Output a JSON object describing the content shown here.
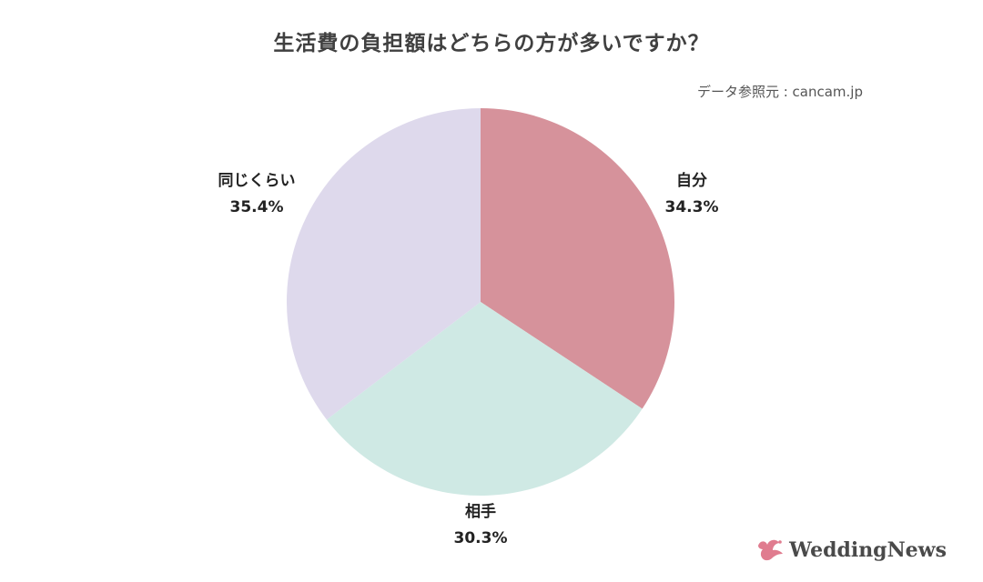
{
  "header": {
    "title": "生活費の負担額はどちらの方が多いですか？",
    "source": "データ参照元 : cancam.jp"
  },
  "brand": {
    "text": "WeddingNews",
    "icon": "dove-icon",
    "color": "#e07c8f"
  },
  "chart_data": {
    "type": "pie",
    "title": "生活費の負担額はどちらの方が多いですか？",
    "slices": [
      {
        "label": "自分",
        "value": 34.3,
        "display": "34.3%",
        "color": "#d6929b"
      },
      {
        "label": "相手",
        "value": 30.3,
        "display": "30.3%",
        "color": "#cfe9e4"
      },
      {
        "label": "同じくらい",
        "value": 35.4,
        "display": "35.4%",
        "color": "#ded9ec"
      }
    ],
    "start": "12 o'clock",
    "direction": "clockwise"
  }
}
